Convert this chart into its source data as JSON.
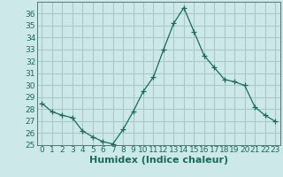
{
  "x": [
    0,
    1,
    2,
    3,
    4,
    5,
    6,
    7,
    8,
    9,
    10,
    11,
    12,
    13,
    14,
    15,
    16,
    17,
    18,
    19,
    20,
    21,
    22,
    23
  ],
  "y": [
    28.5,
    27.8,
    27.5,
    27.3,
    26.2,
    25.7,
    25.3,
    25.1,
    26.3,
    27.8,
    29.5,
    30.7,
    33.0,
    35.2,
    36.5,
    34.5,
    32.5,
    31.5,
    30.5,
    30.3,
    30.0,
    28.2,
    27.5,
    27.0
  ],
  "line_color": "#1a6b5a",
  "marker": "+",
  "marker_size": 4,
  "bg_color": "#cce8e8",
  "grid_major_color": "#aac8c8",
  "grid_minor_color": "#bbdada",
  "xlabel": "Humidex (Indice chaleur)",
  "xlim": [
    -0.5,
    23.5
  ],
  "ylim": [
    25,
    37
  ],
  "yticks": [
    25,
    26,
    27,
    28,
    29,
    30,
    31,
    32,
    33,
    34,
    35,
    36
  ],
  "xticks": [
    0,
    1,
    2,
    3,
    4,
    5,
    6,
    7,
    8,
    9,
    10,
    11,
    12,
    13,
    14,
    15,
    16,
    17,
    18,
    19,
    20,
    21,
    22,
    23
  ],
  "tick_label_fontsize": 6.5,
  "xlabel_fontsize": 8,
  "spine_color": "#557777"
}
